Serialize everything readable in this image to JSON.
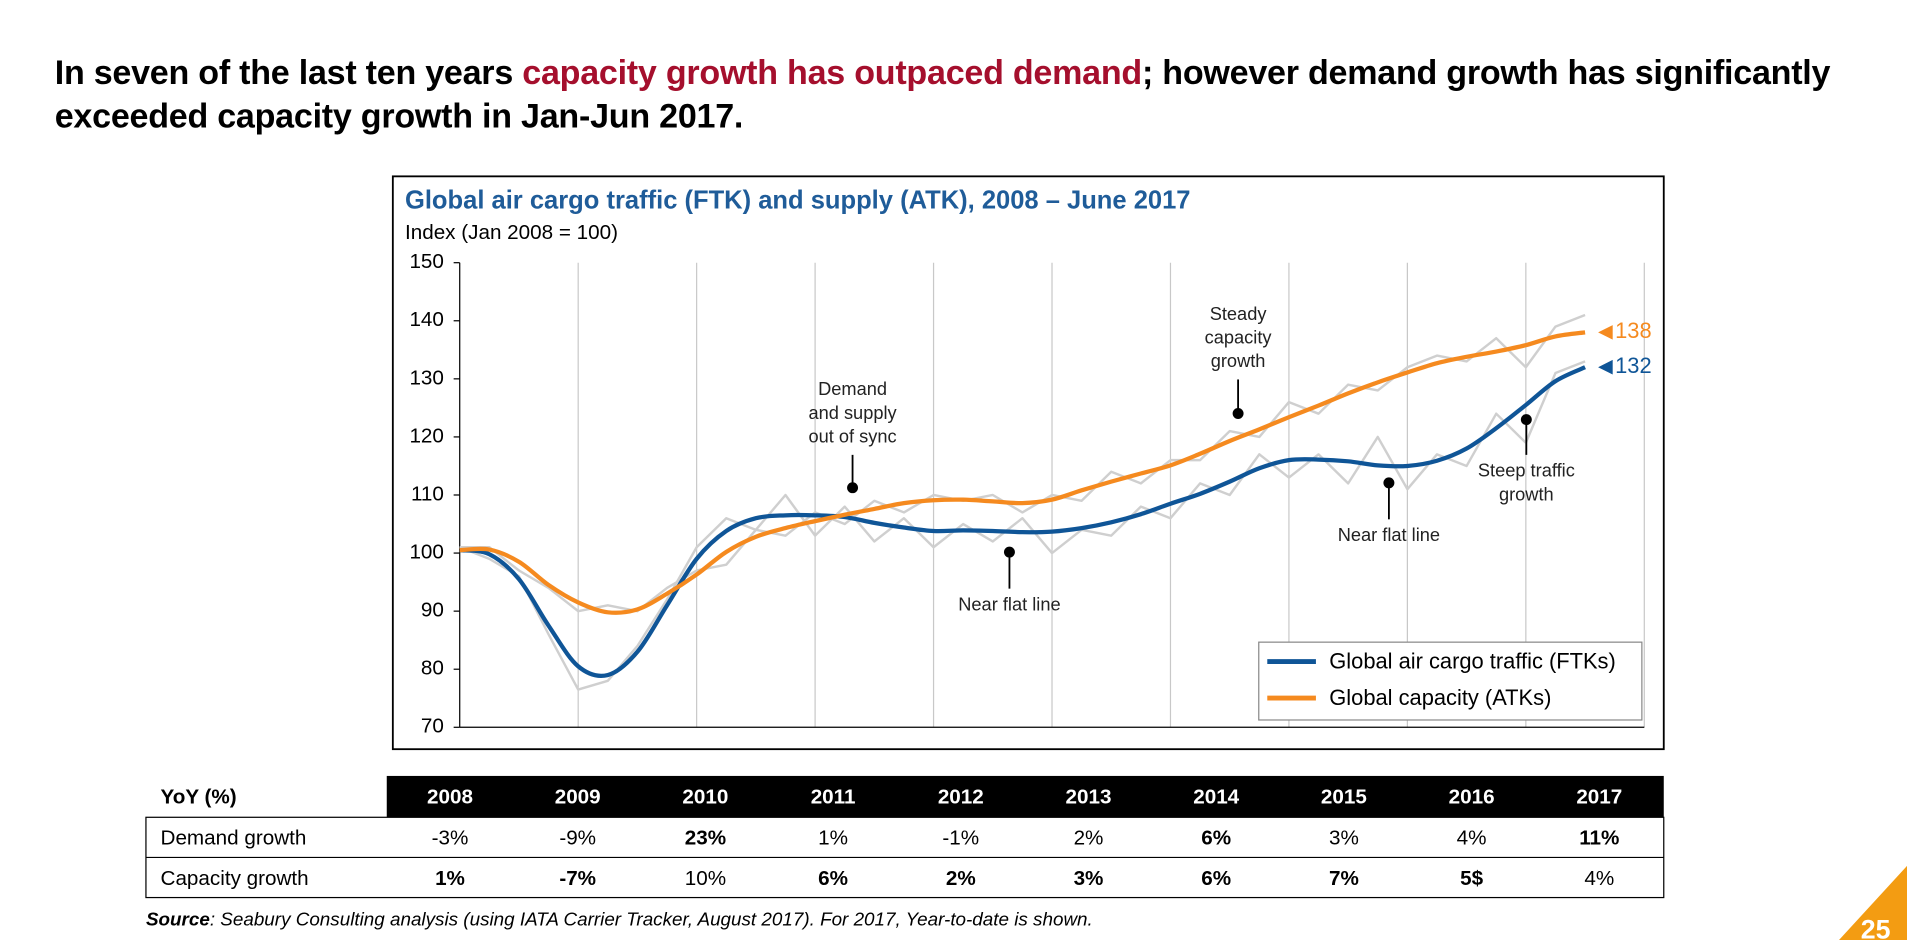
{
  "title": {
    "before": "In seven of the last ten years ",
    "highlight": "capacity growth has outpaced demand",
    "after": "; however demand growth has significantly exceeded capacity growth in Jan-Jun 2017."
  },
  "chart_data": {
    "type": "line",
    "title": "Global air cargo traffic (FTK) and supply (ATK), 2008 – June 2017",
    "subtitle": "Index (Jan 2008 = 100)",
    "x": [
      2008,
      2008.25,
      2008.5,
      2008.75,
      2009,
      2009.25,
      2009.5,
      2009.75,
      2010,
      2010.25,
      2010.5,
      2010.75,
      2011,
      2011.25,
      2011.5,
      2011.75,
      2012,
      2012.25,
      2012.5,
      2012.75,
      2013,
      2013.25,
      2013.5,
      2013.75,
      2014,
      2014.25,
      2014.5,
      2014.75,
      2015,
      2015.25,
      2015.5,
      2015.75,
      2016,
      2016.25,
      2016.5,
      2016.75,
      2017,
      2017.25,
      2017.5
    ],
    "series": [
      {
        "color": "#cfcfcf",
        "values": [
          101,
          99,
          96,
          86,
          76.5,
          78,
          84,
          92,
          101,
          106,
          104,
          110,
          103,
          108,
          102,
          106,
          101,
          105,
          102,
          106,
          100,
          104,
          103,
          108,
          106,
          112,
          110,
          117,
          113,
          117,
          112,
          120,
          111,
          117,
          115,
          124,
          119,
          131,
          133
        ]
      },
      {
        "color": "#cfcfcf",
        "values": [
          101,
          101,
          97,
          94,
          90,
          91,
          90,
          94,
          97,
          98,
          104,
          103,
          107,
          105,
          109,
          107,
          110,
          109,
          110,
          107,
          110,
          109,
          114,
          112,
          116,
          116,
          121,
          120,
          126,
          124,
          129,
          128,
          132,
          134,
          133,
          137,
          132,
          139,
          141
        ]
      },
      {
        "name": "Global air cargo traffic (FTKs)",
        "color": "#0f5597",
        "values": [
          100.5,
          99.8,
          95.5,
          87.5,
          80.5,
          79,
          83,
          91,
          99,
          103.8,
          106,
          106.5,
          106.5,
          106.2,
          105.2,
          104.4,
          103.8,
          103.9,
          103.8,
          103.6,
          103.7,
          104.3,
          105.3,
          106.7,
          108.5,
          110.2,
          112.3,
          114.6,
          116,
          116.1,
          115.8,
          115.1,
          115,
          115.9,
          118,
          121.5,
          125.5,
          129.6,
          132
        ]
      },
      {
        "name": "Global capacity (ATKs)",
        "color": "#f58a1f",
        "values": [
          100.5,
          100.6,
          98.5,
          94.5,
          91.5,
          89.8,
          90.3,
          93,
          96.3,
          100.2,
          102.8,
          104.3,
          105.5,
          106.6,
          107.6,
          108.6,
          109.1,
          109.2,
          108.9,
          108.6,
          109.2,
          110.8,
          112.3,
          113.7,
          115.1,
          117.1,
          119.3,
          121.3,
          123.4,
          125.4,
          127.5,
          129.4,
          131.1,
          132.7,
          133.8,
          134.7,
          135.8,
          137.3,
          138
        ]
      }
    ],
    "xlim": [
      2008,
      2018
    ],
    "xticks": [
      2009,
      2010,
      2011,
      2012,
      2013,
      2014,
      2015,
      2016,
      2017,
      2018
    ],
    "ylim": [
      70,
      150
    ],
    "yticks": [
      70,
      80,
      90,
      100,
      110,
      120,
      130,
      140,
      150
    ],
    "grid": true,
    "legend": "lower right",
    "annotations": [
      [
        "Demand",
        "and supply",
        "out of sync"
      ],
      [
        "Near flat line"
      ],
      [
        "Steady",
        "capacity",
        "growth"
      ],
      [
        "Near flat line"
      ],
      [
        "Steep traffic",
        "growth"
      ]
    ]
  },
  "table": {
    "header": [
      "YoY (%)",
      "2008",
      "2009",
      "2010",
      "2011",
      "2012",
      "2013",
      "2014",
      "2015",
      "2016",
      "2017"
    ],
    "rows": [
      {
        "label": "Demand growth",
        "cells": [
          "-3%",
          "-9%",
          "23%",
          "1%",
          "-1%",
          "2%",
          "6%",
          "3%",
          "4%",
          "11%"
        ],
        "bold": [
          false,
          false,
          true,
          false,
          false,
          false,
          true,
          false,
          false,
          true
        ]
      },
      {
        "label": "Capacity growth",
        "cells": [
          "1%",
          "-7%",
          "10%",
          "6%",
          "2%",
          "3%",
          "6%",
          "7%",
          "5$",
          "4%"
        ],
        "bold": [
          true,
          true,
          false,
          true,
          true,
          true,
          true,
          true,
          true,
          false
        ]
      }
    ]
  },
  "source": {
    "label": "Source",
    "text": ": Seabury Consulting analysis (using IATA Carrier Tracker, August 2017). For 2017, Year-to-date is shown."
  },
  "page_number": "25"
}
